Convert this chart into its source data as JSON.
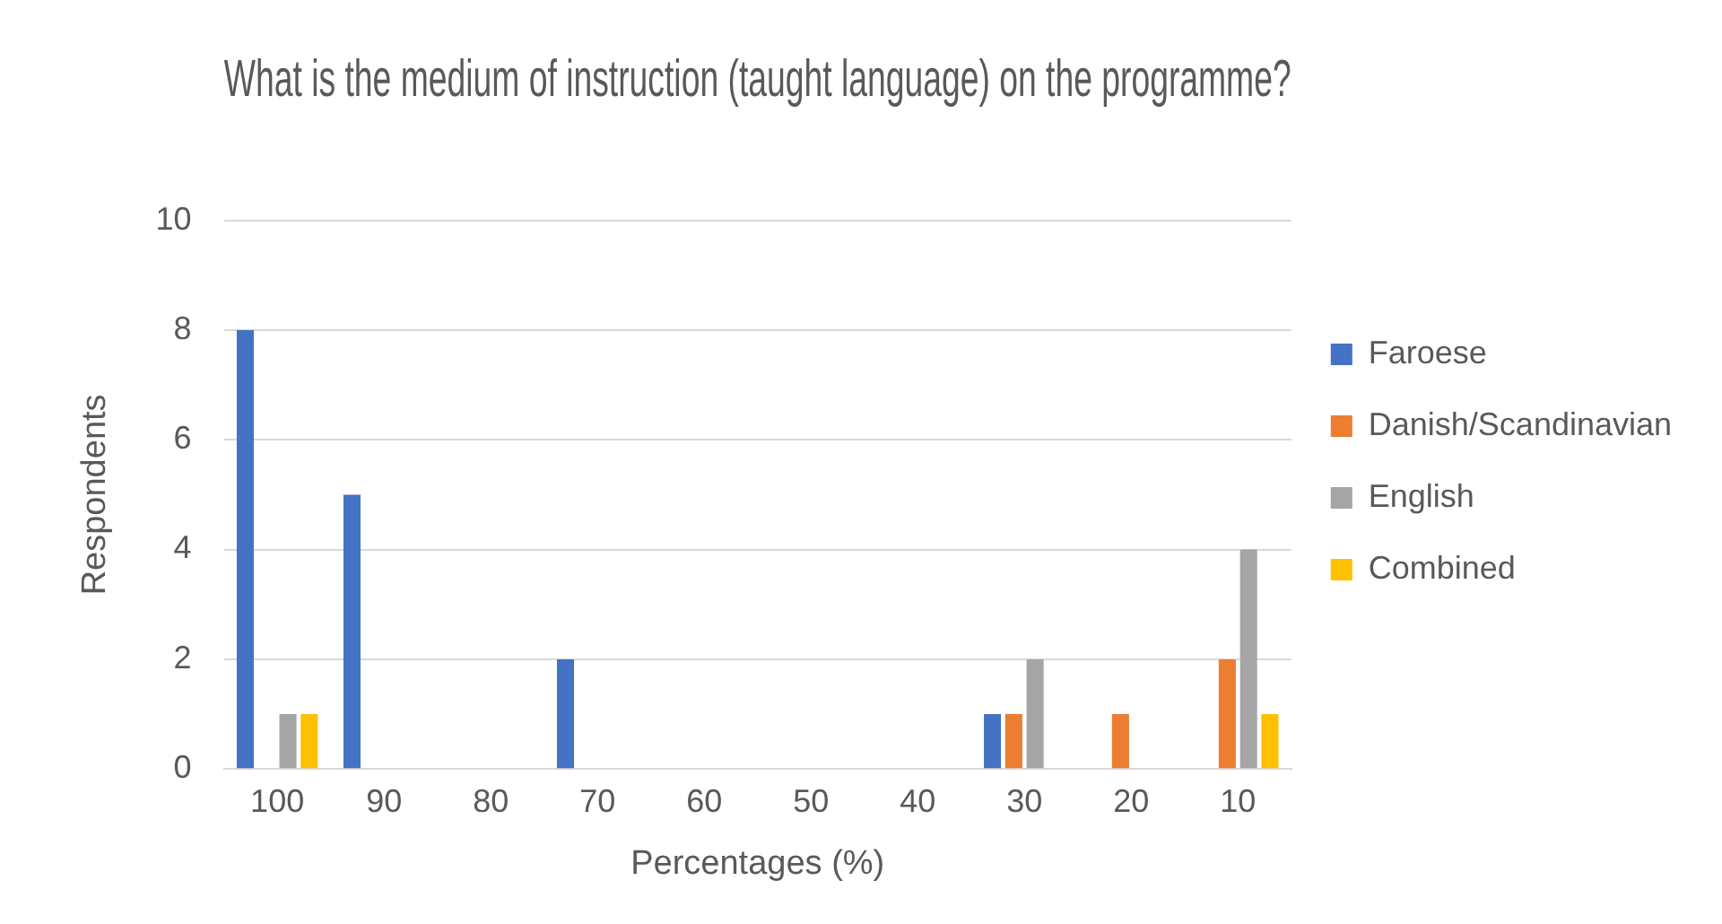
{
  "chart_data": {
    "type": "bar",
    "title": "What is the medium of instruction (taught language) on the programme?",
    "xlabel": "Percentages (%)",
    "ylabel": "Respondents",
    "categories": [
      "100",
      "90",
      "80",
      "70",
      "60",
      "50",
      "40",
      "30",
      "20",
      "10"
    ],
    "series": [
      {
        "name": "Faroese",
        "color": "#4472c4",
        "values": [
          8,
          5,
          0,
          2,
          0,
          0,
          0,
          1,
          0,
          0
        ]
      },
      {
        "name": "Danish/Scandinavian",
        "color": "#ed7d31",
        "values": [
          0,
          0,
          0,
          0,
          0,
          0,
          0,
          1,
          1,
          2
        ]
      },
      {
        "name": "English",
        "color": "#a5a5a5",
        "values": [
          1,
          0,
          0,
          0,
          0,
          0,
          0,
          2,
          0,
          4
        ]
      },
      {
        "name": "Combined",
        "color": "#ffc000",
        "values": [
          1,
          0,
          0,
          0,
          0,
          0,
          0,
          0,
          0,
          1
        ]
      }
    ],
    "ylim": [
      0,
      10
    ],
    "yticks": [
      0,
      2,
      4,
      6,
      8,
      10
    ],
    "grid": "y",
    "legend": "right"
  }
}
